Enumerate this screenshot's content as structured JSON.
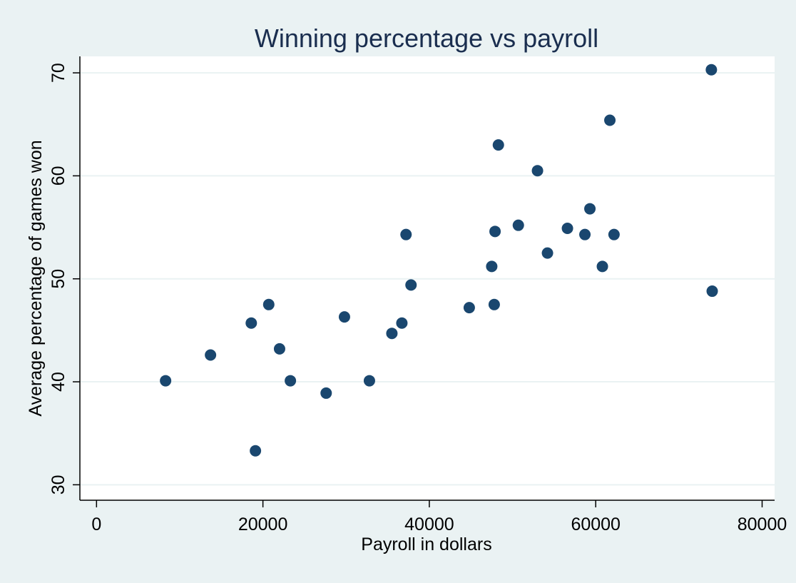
{
  "chart_data": {
    "type": "scatter",
    "title": "Winning percentage vs payroll",
    "xlabel": "Payroll in dollars",
    "ylabel": "Average percentage of games won",
    "xlim": [
      -2000,
      81500
    ],
    "ylim": [
      28.5,
      71.6
    ],
    "xticks": [
      0,
      20000,
      40000,
      60000,
      80000
    ],
    "yticks": [
      30,
      40,
      50,
      60,
      70
    ],
    "grid": true,
    "legend": "none",
    "colors": {
      "marker": "#1a476f",
      "background": "#eaf2f3",
      "plot_area": "#ffffff",
      "grid": "#eaf2f3",
      "axis": "#000000",
      "title": "#1a2e4f"
    },
    "series": [
      {
        "x": [
          8300,
          13700,
          18600,
          19100,
          20700,
          22000,
          23300,
          27600,
          29800,
          32800,
          35500,
          36700,
          37200,
          37800,
          44800,
          47500,
          47800,
          47900,
          48300,
          50700,
          53000,
          54200,
          56600,
          58700,
          59300,
          60800,
          61700,
          62200,
          73900,
          74000
        ],
        "y": [
          40.1,
          42.6,
          45.7,
          33.3,
          47.5,
          43.2,
          40.1,
          38.9,
          46.3,
          40.1,
          44.7,
          45.7,
          54.3,
          49.4,
          47.2,
          51.2,
          47.5,
          54.6,
          63.0,
          55.2,
          60.5,
          52.5,
          54.9,
          54.3,
          56.8,
          51.2,
          65.4,
          54.3,
          70.3,
          48.8
        ]
      }
    ]
  }
}
